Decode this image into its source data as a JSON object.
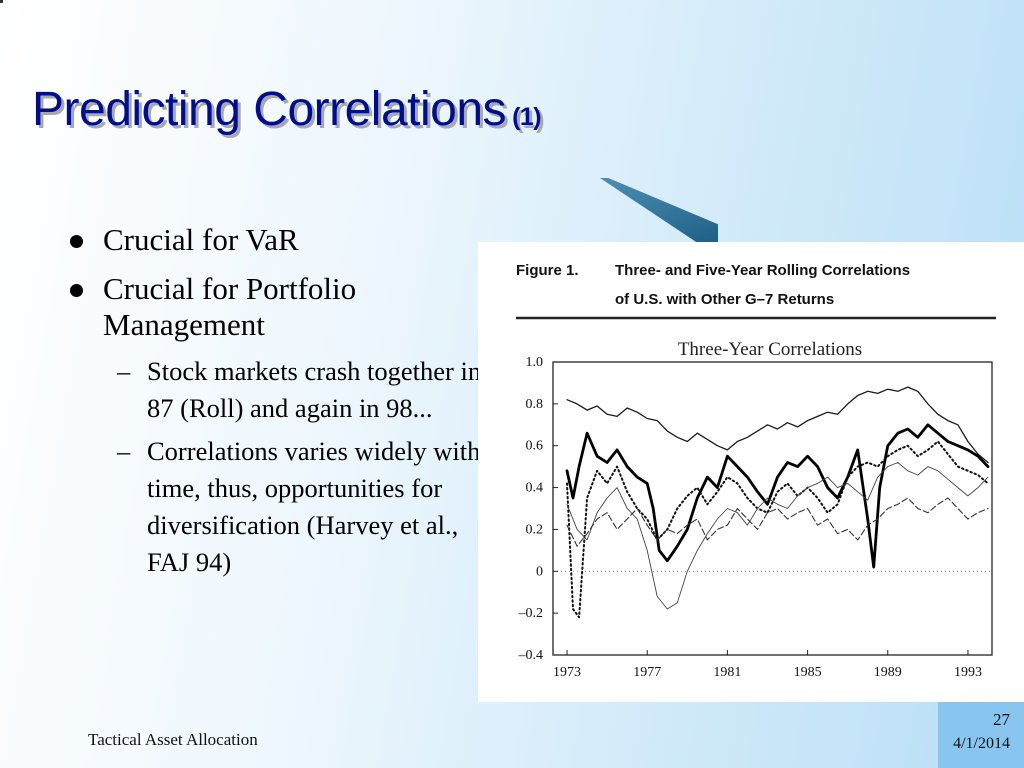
{
  "slide": {
    "title": "Predicting Correlations",
    "title_suffix": "(1)",
    "bullets": [
      "Crucial for VaR",
      "Crucial for Portfolio Management"
    ],
    "sub_bullets": [
      "Stock markets crash together in 87 (Roll) and again in 98...",
      "Correlations varies widely with time, thus, opportunities for diversification (Harvey et al., FAJ 94)"
    ],
    "footer": "Tactical Asset Allocation",
    "page_number": "27",
    "date": "4/1/2014"
  },
  "colors": {
    "title": "#000e8a",
    "accent": "#2a6e96",
    "page_box": "#88c5ef"
  },
  "chart_data": {
    "type": "line",
    "figure_label": "Figure 1.",
    "figure_caption_line1": "Three- and Five-Year Rolling Correlations",
    "figure_caption_line2": "of U.S. with Other G–7 Returns",
    "title": "Three-Year Correlations",
    "xlabel": "",
    "ylabel": "",
    "x_ticks": [
      1973,
      1977,
      1981,
      1985,
      1989,
      1993
    ],
    "x_tick_labels": [
      "1973",
      "1977",
      "1981",
      "1985",
      "1989",
      "1993"
    ],
    "y_ticks": [
      1.0,
      0.8,
      0.6,
      0.4,
      0.2,
      0,
      -0.2,
      -0.4
    ],
    "y_tick_labels": [
      "1.0",
      "0.8",
      "0.6",
      "0.4",
      "0.2",
      "0",
      "–0.2",
      "–0.4"
    ],
    "xlim": [
      1972.3,
      1994.2
    ],
    "ylim": [
      -0.4,
      1.0
    ],
    "grid": false,
    "series": [
      {
        "style": "thin",
        "x": [
          1973,
          1973.5,
          1974,
          1974.5,
          1975,
          1975.5,
          1976,
          1976.5,
          1977,
          1977.5,
          1978,
          1978.5,
          1979,
          1979.5,
          1980,
          1980.5,
          1981,
          1981.5,
          1982,
          1982.5,
          1983,
          1983.5,
          1984,
          1984.5,
          1985,
          1985.5,
          1986,
          1986.5,
          1987,
          1987.5,
          1988,
          1988.5,
          1989,
          1989.5,
          1990,
          1990.5,
          1991,
          1991.5,
          1992,
          1992.5,
          1993,
          1993.5,
          1994
        ],
        "y": [
          0.82,
          0.8,
          0.77,
          0.79,
          0.75,
          0.74,
          0.78,
          0.76,
          0.73,
          0.72,
          0.67,
          0.64,
          0.62,
          0.66,
          0.63,
          0.6,
          0.58,
          0.62,
          0.64,
          0.67,
          0.7,
          0.68,
          0.71,
          0.69,
          0.72,
          0.74,
          0.76,
          0.75,
          0.8,
          0.84,
          0.86,
          0.85,
          0.87,
          0.86,
          0.88,
          0.86,
          0.8,
          0.75,
          0.72,
          0.7,
          0.62,
          0.56,
          0.52
        ]
      },
      {
        "style": "thick",
        "x": [
          1973,
          1973.3,
          1973.6,
          1974,
          1974.5,
          1975,
          1975.5,
          1976,
          1976.5,
          1977,
          1977.3,
          1977.6,
          1978,
          1978.5,
          1979,
          1979.5,
          1980,
          1980.5,
          1981,
          1981.5,
          1982,
          1982.5,
          1983,
          1983.5,
          1984,
          1984.5,
          1985,
          1985.5,
          1986,
          1986.5,
          1987,
          1987.5,
          1988,
          1988.3,
          1988.6,
          1989,
          1989.5,
          1990,
          1990.5,
          1991,
          1991.5,
          1992,
          1992.5,
          1993,
          1993.5,
          1994
        ],
        "y": [
          0.48,
          0.35,
          0.5,
          0.66,
          0.55,
          0.52,
          0.58,
          0.5,
          0.45,
          0.42,
          0.3,
          0.1,
          0.05,
          0.12,
          0.2,
          0.35,
          0.45,
          0.4,
          0.55,
          0.5,
          0.45,
          0.38,
          0.32,
          0.45,
          0.52,
          0.5,
          0.55,
          0.5,
          0.4,
          0.35,
          0.45,
          0.58,
          0.25,
          0.02,
          0.4,
          0.6,
          0.66,
          0.68,
          0.64,
          0.7,
          0.66,
          0.62,
          0.6,
          0.58,
          0.55,
          0.5
        ]
      },
      {
        "style": "dotted",
        "x": [
          1973,
          1973.3,
          1973.6,
          1974,
          1974.5,
          1975,
          1975.5,
          1976,
          1976.5,
          1977,
          1977.5,
          1978,
          1978.5,
          1979,
          1979.5,
          1980,
          1980.5,
          1981,
          1981.5,
          1982,
          1982.5,
          1983,
          1983.5,
          1984,
          1984.5,
          1985,
          1985.5,
          1986,
          1986.5,
          1987,
          1987.5,
          1988,
          1988.5,
          1989,
          1989.5,
          1990,
          1990.5,
          1991,
          1991.5,
          1992,
          1992.5,
          1993,
          1993.5,
          1994
        ],
        "y": [
          0.42,
          -0.18,
          -0.22,
          0.35,
          0.48,
          0.42,
          0.5,
          0.38,
          0.3,
          0.25,
          0.15,
          0.2,
          0.3,
          0.36,
          0.4,
          0.32,
          0.38,
          0.45,
          0.42,
          0.35,
          0.3,
          0.28,
          0.38,
          0.42,
          0.36,
          0.4,
          0.35,
          0.28,
          0.32,
          0.45,
          0.5,
          0.52,
          0.5,
          0.55,
          0.58,
          0.6,
          0.55,
          0.58,
          0.62,
          0.56,
          0.5,
          0.48,
          0.46,
          0.42
        ]
      },
      {
        "style": "thin-light",
        "x": [
          1973,
          1973.5,
          1974,
          1974.5,
          1975,
          1975.5,
          1976,
          1976.5,
          1977,
          1977.5,
          1978,
          1978.5,
          1979,
          1979.5,
          1980,
          1980.5,
          1981,
          1981.5,
          1982,
          1982.5,
          1983,
          1983.5,
          1984,
          1984.5,
          1985,
          1985.5,
          1986,
          1986.5,
          1987,
          1987.5,
          1988,
          1988.5,
          1989,
          1989.5,
          1990,
          1990.5,
          1991,
          1991.5,
          1992,
          1992.5,
          1993,
          1993.5,
          1994
        ],
        "y": [
          0.32,
          0.2,
          0.15,
          0.28,
          0.35,
          0.4,
          0.3,
          0.25,
          0.1,
          -0.12,
          -0.18,
          -0.15,
          0.0,
          0.1,
          0.18,
          0.25,
          0.3,
          0.28,
          0.22,
          0.3,
          0.35,
          0.32,
          0.3,
          0.36,
          0.4,
          0.42,
          0.45,
          0.4,
          0.42,
          0.38,
          0.34,
          0.45,
          0.5,
          0.52,
          0.48,
          0.46,
          0.5,
          0.48,
          0.44,
          0.4,
          0.36,
          0.4,
          0.45
        ]
      },
      {
        "style": "dashed",
        "x": [
          1973,
          1973.5,
          1974,
          1974.5,
          1975,
          1975.5,
          1976,
          1976.5,
          1977,
          1977.5,
          1978,
          1978.5,
          1979,
          1979.5,
          1980,
          1980.5,
          1981,
          1981.5,
          1982,
          1982.5,
          1983,
          1983.5,
          1984,
          1984.5,
          1985,
          1985.5,
          1986,
          1986.5,
          1987,
          1987.5,
          1988,
          1988.5,
          1989,
          1989.5,
          1990,
          1990.5,
          1991,
          1991.5,
          1992,
          1992.5,
          1993,
          1993.5,
          1994
        ],
        "y": [
          0.22,
          0.12,
          0.18,
          0.25,
          0.28,
          0.2,
          0.25,
          0.3,
          0.22,
          0.15,
          0.2,
          0.18,
          0.22,
          0.25,
          0.15,
          0.2,
          0.22,
          0.3,
          0.25,
          0.2,
          0.28,
          0.3,
          0.25,
          0.28,
          0.3,
          0.22,
          0.25,
          0.18,
          0.2,
          0.15,
          0.22,
          0.25,
          0.3,
          0.32,
          0.35,
          0.3,
          0.28,
          0.32,
          0.35,
          0.3,
          0.25,
          0.28,
          0.3
        ]
      }
    ]
  }
}
